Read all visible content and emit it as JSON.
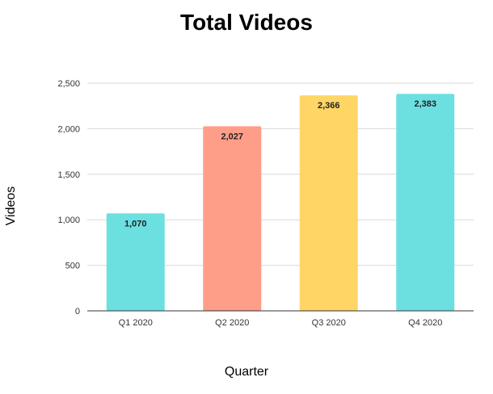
{
  "chart_data": {
    "type": "bar",
    "title": "Total Videos",
    "xlabel": "Quarter",
    "ylabel": "Videos",
    "categories": [
      "Q1 2020",
      "Q2 2020",
      "Q3 2020",
      "Q4 2020"
    ],
    "values": [
      1070,
      2027,
      2366,
      2383
    ],
    "data_labels": [
      "1,070",
      "2,027",
      "2,366",
      "2,383"
    ],
    "bar_colors": [
      "#6ce0e0",
      "#ff9e88",
      "#ffd666",
      "#6ce0e0"
    ],
    "ylim": [
      0,
      2500
    ],
    "yticks": [
      0,
      500,
      1000,
      1500,
      2000,
      2500
    ],
    "ytick_labels": [
      "0",
      "500",
      "1,000",
      "1,500",
      "2,000",
      "2,500"
    ],
    "grid": true,
    "legend": "none"
  }
}
